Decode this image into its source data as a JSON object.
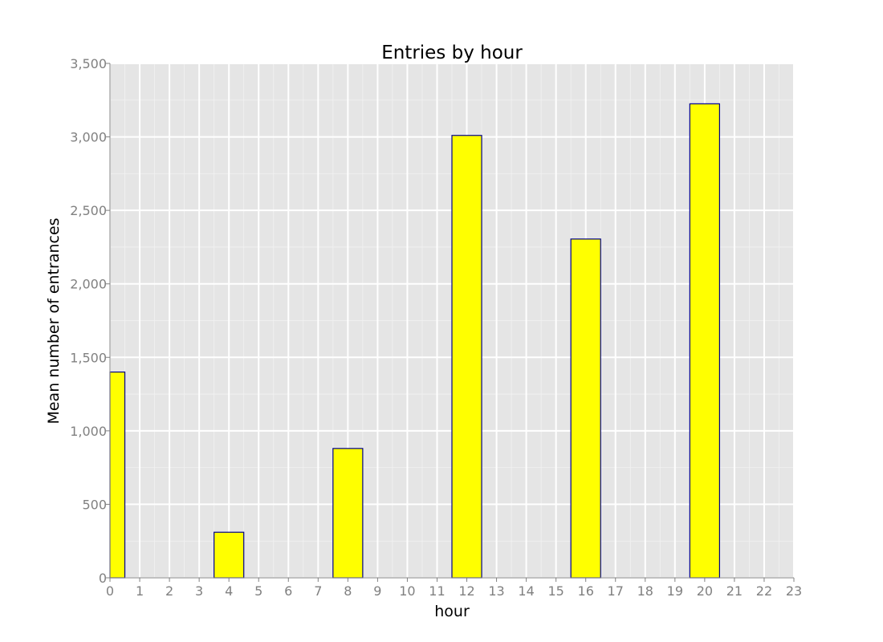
{
  "chart_data": {
    "type": "bar",
    "title": "Entries by hour",
    "xlabel": "hour",
    "ylabel": "Mean number of entrances",
    "x": [
      0,
      4,
      8,
      12,
      16,
      20
    ],
    "values": [
      1400,
      310,
      880,
      3010,
      2305,
      3225
    ],
    "xlim": [
      0,
      23
    ],
    "ylim": [
      0,
      3500
    ],
    "xticks": [
      "0",
      "1",
      "2",
      "3",
      "4",
      "5",
      "6",
      "7",
      "8",
      "9",
      "10",
      "11",
      "12",
      "13",
      "14",
      "15",
      "16",
      "17",
      "18",
      "19",
      "20",
      "21",
      "22",
      "23"
    ],
    "yticks": [
      "0",
      "500",
      "1,000",
      "1,500",
      "2,000",
      "2,500",
      "3,000",
      "3,500"
    ],
    "grid": true,
    "bar_fill": "#ffff00",
    "bar_edge": "#00008b",
    "panel_background": "#e5e5e5",
    "grid_color": "#ffffff"
  }
}
